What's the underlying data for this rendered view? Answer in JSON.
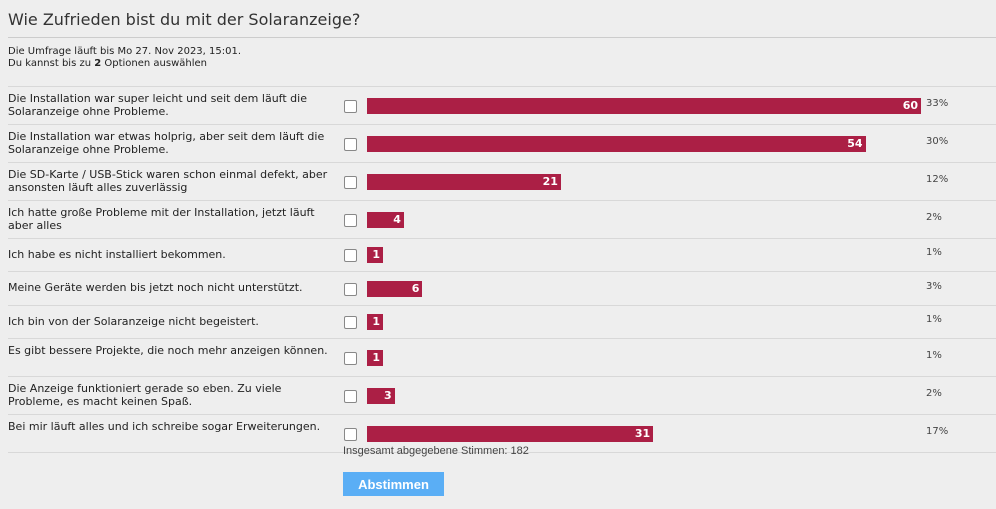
{
  "poll": {
    "title": "Wie Zufrieden bist du mit der Solaranzeige?",
    "info_line1": "Die Umfrage läuft bis Mo 27. Nov 2023, 15:01.",
    "info_line2_pre": "Du kannst bis zu ",
    "info_line2_num": "2",
    "info_line2_post": " Optionen auswählen",
    "max_votes": 60,
    "bar_color": "#ab1f45",
    "options": [
      {
        "label": "Die Installation war super leicht und seit dem läuft die Solaranzeige ohne Probleme.",
        "votes": 60,
        "percent": "33%"
      },
      {
        "label": "Die Installation war etwas holprig, aber seit dem läuft die Solaranzeige ohne Probleme.",
        "votes": 54,
        "percent": "30%"
      },
      {
        "label": "Die SD-Karte / USB-Stick waren schon einmal defekt, aber ansonsten läuft alles zuverlässig",
        "votes": 21,
        "percent": "12%"
      },
      {
        "label": "Ich hatte große Probleme mit der Installation, jetzt läuft aber alles",
        "votes": 4,
        "percent": "2%"
      },
      {
        "label": "Ich habe es nicht installiert bekommen.",
        "votes": 1,
        "percent": "1%"
      },
      {
        "label": "Meine Geräte werden bis jetzt noch nicht unterstützt.",
        "votes": 6,
        "percent": "3%"
      },
      {
        "label": "Ich bin von der Solaranzeige nicht begeistert.",
        "votes": 1,
        "percent": "1%"
      },
      {
        "label": "Es gibt bessere Projekte, die noch mehr anzeigen können.",
        "votes": 1,
        "percent": "1%"
      },
      {
        "label": "Die Anzeige funktioniert gerade so eben. Zu viele Probleme, es macht keinen Spaß.",
        "votes": 3,
        "percent": "2%"
      },
      {
        "label": "Bei mir läuft alles und ich schreibe sogar Erweiterungen.",
        "votes": 31,
        "percent": "17%"
      }
    ],
    "total_votes": "Insgesamt abgegebene Stimmen: 182",
    "submit_label": "Abstimmen"
  }
}
